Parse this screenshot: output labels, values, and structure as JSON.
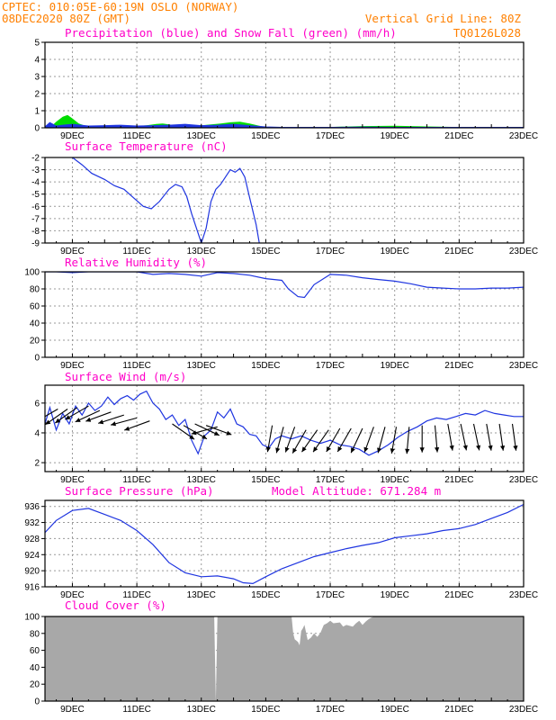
{
  "header": {
    "line1": "CPTEC:   010:05E-60:19N   OSLO (NORWAY)",
    "line2": "08DEC2020 80Z (GMT)",
    "grid_note": "Vertical Grid Line: 80Z",
    "code": "TQ0126L028"
  },
  "colors": {
    "header": "#ff8000",
    "panel_title": "#ff00c8",
    "series_line": "#1f35e0",
    "precip_blue": "#1f35e0",
    "snow_green": "#00dd00",
    "cloud_gray": "#a8a8a8",
    "wind_arrow": "#000000",
    "grid": "#9a9a9a"
  },
  "x_axis": {
    "tick_labels": [
      "9DEC",
      "11DEC",
      "13DEC",
      "15DEC",
      "17DEC",
      "19DEC",
      "21DEC",
      "23DEC"
    ],
    "tick_days": [
      1,
      3,
      5,
      7,
      9,
      11,
      13,
      15
    ],
    "range_days": [
      0.15,
      15
    ],
    "note": "x values are days since 08DEC2020 00Z"
  },
  "chart_data": [
    {
      "type": "area",
      "title": "Precipitation (blue) and Snow Fall (green) (mm/h)",
      "ylim": [
        0,
        5
      ],
      "yticks": [
        0,
        1,
        2,
        3,
        4,
        5
      ],
      "grid": true,
      "series": [
        {
          "name": "Precipitation",
          "color": "#1f35e0",
          "x": [
            0.15,
            0.3,
            0.5,
            0.7,
            1,
            1.5,
            2,
            2.5,
            3,
            3.5,
            4,
            4.5,
            5,
            5.5,
            6,
            6.5,
            7,
            7.5,
            8,
            9,
            10,
            11,
            12,
            13,
            14,
            15
          ],
          "values": [
            0.05,
            0.3,
            0.1,
            0.15,
            0.2,
            0.1,
            0.12,
            0.15,
            0.1,
            0.12,
            0.15,
            0.2,
            0.12,
            0.15,
            0.2,
            0.12,
            0.05,
            0.02,
            0.02,
            0.02,
            0.03,
            0.02,
            0.02,
            0.02,
            0.02,
            0.02
          ]
        },
        {
          "name": "Snow Fall",
          "color": "#00dd00",
          "x": [
            0.3,
            0.5,
            0.7,
            0.85,
            1.0,
            1.2,
            1.4,
            1.6,
            2,
            2.5,
            3,
            3.3,
            3.6,
            3.8,
            4.0,
            4.2,
            4.5,
            5,
            5.3,
            5.6,
            5.9,
            6.2,
            6.5,
            6.8,
            7,
            7.5,
            8,
            9,
            10,
            11,
            12,
            13,
            14,
            15
          ],
          "values": [
            0,
            0.35,
            0.65,
            0.75,
            0.55,
            0.25,
            0.12,
            0.08,
            0.05,
            0.08,
            0.1,
            0.15,
            0.22,
            0.25,
            0.2,
            0.15,
            0.12,
            0.15,
            0.2,
            0.25,
            0.32,
            0.35,
            0.25,
            0.12,
            0.05,
            0.02,
            0.02,
            0.05,
            0.1,
            0.12,
            0.08,
            0.05,
            0.03,
            0.03
          ]
        }
      ]
    },
    {
      "type": "line",
      "title": "Surface Temperature (nC)",
      "ylim": [
        -9,
        -2
      ],
      "yticks": [
        -9,
        -8,
        -7,
        -6,
        -5,
        -4,
        -3,
        -2
      ],
      "grid": true,
      "series": [
        {
          "color": "#1f35e0",
          "x": [
            1.0,
            1.3,
            1.6,
            2.0,
            2.3,
            2.6,
            2.9,
            3.2,
            3.45,
            3.7,
            4.0,
            4.2,
            4.4,
            4.55,
            4.7,
            4.85,
            5.0,
            5.15,
            5.3,
            5.45,
            5.6,
            5.75,
            5.9,
            6.05,
            6.2,
            6.35,
            6.5,
            6.7,
            6.8
          ],
          "values": [
            -2.0,
            -2.6,
            -3.3,
            -3.8,
            -4.3,
            -4.6,
            -5.3,
            -6.0,
            -6.2,
            -5.6,
            -4.6,
            -4.2,
            -4.4,
            -5.2,
            -6.6,
            -7.8,
            -9.0,
            -7.8,
            -5.6,
            -4.6,
            -4.2,
            -3.6,
            -3.0,
            -3.2,
            -2.9,
            -3.6,
            -5.3,
            -7.5,
            -9.0
          ]
        }
      ]
    },
    {
      "type": "line",
      "title": "Relative Humidity (%)",
      "ylim": [
        0,
        100
      ],
      "yticks": [
        0,
        20,
        40,
        60,
        80,
        100
      ],
      "grid": true,
      "series": [
        {
          "color": "#1f35e0",
          "x": [
            0.15,
            0.5,
            1,
            1.5,
            2,
            2.5,
            3,
            3.5,
            4,
            4.5,
            5,
            5.5,
            6,
            6.5,
            7,
            7.5,
            7.7,
            8.0,
            8.2,
            8.5,
            9.0,
            9.5,
            10,
            10.5,
            11,
            11.5,
            12,
            12.5,
            13,
            13.5,
            14,
            14.5,
            15
          ],
          "values": [
            100,
            100,
            99,
            100,
            100,
            100,
            100,
            97,
            98,
            97,
            95,
            99,
            98,
            96,
            92,
            90,
            80,
            71,
            70,
            85,
            97,
            96,
            93,
            91,
            89,
            86,
            82,
            81,
            80,
            80,
            81,
            81,
            82
          ]
        }
      ]
    },
    {
      "type": "line",
      "title": "Surface Wind (m/s)",
      "ylim": [
        1.4,
        7.2
      ],
      "yticks": [
        2,
        4,
        6
      ],
      "grid": true,
      "series": [
        {
          "color": "#1f35e0",
          "x": [
            0.15,
            0.3,
            0.5,
            0.7,
            0.9,
            1.1,
            1.3,
            1.5,
            1.7,
            1.9,
            2.1,
            2.3,
            2.5,
            2.7,
            2.9,
            3.1,
            3.3,
            3.5,
            3.7,
            3.9,
            4.1,
            4.3,
            4.5,
            4.7,
            4.9,
            5.1,
            5.3,
            5.5,
            5.7,
            5.9,
            6.1,
            6.3,
            6.5,
            6.7,
            6.9,
            7.1,
            7.3,
            7.5,
            7.8,
            8.1,
            8.4,
            8.7,
            9.0,
            9.3,
            9.6,
            9.9,
            10.2,
            10.5,
            10.8,
            11.1,
            11.4,
            11.7,
            12.0,
            12.3,
            12.6,
            12.9,
            13.2,
            13.5,
            13.8,
            14.1,
            14.4,
            14.7,
            15
          ],
          "values": [
            4.6,
            5.7,
            4.2,
            5.3,
            4.6,
            5.8,
            5.2,
            6.0,
            5.5,
            5.8,
            6.4,
            5.9,
            6.3,
            6.5,
            6.2,
            6.6,
            6.8,
            6.0,
            5.6,
            4.9,
            5.2,
            4.5,
            4.9,
            3.5,
            2.6,
            3.8,
            4.2,
            5.4,
            5.0,
            5.6,
            4.6,
            4.4,
            3.9,
            3.8,
            3.2,
            3.0,
            3.6,
            3.8,
            3.6,
            3.8,
            3.5,
            3.3,
            3.5,
            3.2,
            3.1,
            2.9,
            2.5,
            2.8,
            3.2,
            3.7,
            4.1,
            4.4,
            4.8,
            5.0,
            4.9,
            5.1,
            5.3,
            5.2,
            5.5,
            5.3,
            5.2,
            5.1,
            5.1
          ]
        }
      ],
      "wind_arrows": {
        "x": [
          0.25,
          0.55,
          0.85,
          1.15,
          1.5,
          1.85,
          2.2,
          2.6,
          3.0,
          3.4,
          4.1,
          4.45,
          4.8,
          5.15,
          5.5,
          7.2,
          7.55,
          7.9,
          8.25,
          8.6,
          8.95,
          9.3,
          9.65,
          10.0,
          10.35,
          10.7,
          11.05,
          11.45,
          11.85,
          12.25,
          12.65,
          13.05,
          13.45,
          13.85,
          14.25,
          14.65
        ],
        "y": [
          4.7,
          5.6,
          5.6,
          5.7,
          5.8,
          5.5,
          5.4,
          5.2,
          5.0,
          4.8,
          4.6,
          4.5,
          4.6,
          4.5,
          4.4,
          4.5,
          4.4,
          4.4,
          4.2,
          4.2,
          4.2,
          4.3,
          4.3,
          4.3,
          4.4,
          4.4,
          4.4,
          4.4,
          4.5,
          4.5,
          4.6,
          4.6,
          4.6,
          4.6,
          4.6,
          4.6
        ],
        "dir": [
          165,
          150,
          145,
          145,
          150,
          155,
          160,
          162,
          165,
          160,
          35,
          30,
          25,
          20,
          165,
          100,
          105,
          110,
          120,
          125,
          125,
          120,
          120,
          115,
          110,
          105,
          100,
          95,
          90,
          85,
          80,
          78,
          78,
          80,
          82,
          82
        ]
      }
    },
    {
      "type": "line",
      "title": "Surface Pressure (hPa)",
      "annotation": "Model Altitude: 671.284 m",
      "ylim": [
        916,
        937.5
      ],
      "yticks": [
        916,
        920,
        924,
        928,
        932,
        936
      ],
      "grid": true,
      "series": [
        {
          "color": "#1f35e0",
          "x": [
            0.15,
            0.5,
            1.0,
            1.5,
            2.0,
            2.5,
            3.0,
            3.5,
            4.0,
            4.5,
            5.0,
            5.5,
            6.0,
            6.3,
            6.6,
            7.0,
            7.5,
            8.0,
            8.5,
            9.0,
            9.5,
            10,
            10.5,
            11,
            11.5,
            12,
            12.5,
            13,
            13.5,
            14,
            14.5,
            15
          ],
          "values": [
            929.5,
            932.5,
            935.0,
            935.5,
            934.0,
            932.5,
            930.0,
            926.5,
            922.0,
            919.5,
            918.5,
            918.7,
            918.0,
            917.0,
            916.8,
            918.5,
            920.5,
            922.0,
            923.5,
            924.5,
            925.5,
            926.3,
            927.0,
            928.2,
            928.7,
            929.2,
            930.0,
            930.5,
            931.5,
            933.0,
            934.5,
            936.5
          ]
        }
      ]
    },
    {
      "type": "area",
      "title": "Cloud Cover (%)",
      "ylim": [
        0,
        100
      ],
      "yticks": [
        0,
        20,
        40,
        60,
        80,
        100
      ],
      "grid": true,
      "series": [
        {
          "color": "#a8a8a8",
          "x": [
            0.15,
            5.4,
            5.45,
            5.5,
            7.8,
            7.85,
            7.9,
            8.0,
            8.05,
            8.1,
            8.15,
            8.2,
            8.3,
            8.4,
            8.5,
            8.6,
            8.7,
            8.8,
            8.9,
            9.0,
            9.1,
            9.3,
            9.4,
            9.5,
            9.7,
            9.8,
            9.9,
            10.0,
            10.1,
            10.2,
            10.3,
            10.4,
            10.5,
            15
          ],
          "values": [
            100,
            100,
            0,
            100,
            100,
            80,
            73,
            70,
            66,
            83,
            86,
            90,
            72,
            75,
            80,
            76,
            81,
            90,
            92,
            95,
            92,
            93,
            88,
            90,
            88,
            92,
            95,
            90,
            94,
            97,
            99,
            100,
            100,
            100
          ]
        }
      ]
    }
  ]
}
